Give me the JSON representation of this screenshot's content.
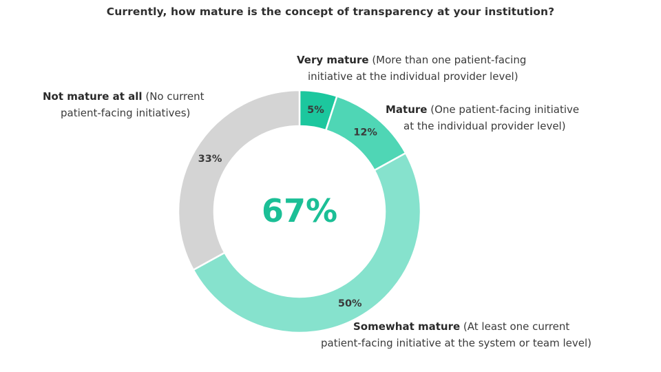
{
  "chart_data": {
    "type": "pie",
    "title": "Currently, how mature is the concept of transparency at your institution?",
    "center_label": "67%",
    "slices": [
      {
        "name": "Very mature",
        "description": "(More than one patient-facing initiative at the individual provider level)",
        "value": 5,
        "label": "5%",
        "color": "#1cc79e"
      },
      {
        "name": "Mature",
        "description": "(One patient-facing initiative at the individual provider level)",
        "value": 12,
        "label": "12%",
        "color": "#4fd6b5"
      },
      {
        "name": "Somewhat mature",
        "description": "(At least one current patient-facing initiative at the system or team level)",
        "value": 50,
        "label": "50%",
        "color": "#86e2cd"
      },
      {
        "name": "Not mature at all",
        "description": "(No current patient-facing initiatives)",
        "value": 33,
        "label": "33%",
        "color": "#d4d4d4"
      }
    ]
  },
  "callouts": {
    "very": {
      "name": "Very mature",
      "line1_rest": "(More than one patient-facing",
      "line2": "initiative at the individual provider level)"
    },
    "mature": {
      "name": "Mature",
      "line1_rest": "(One patient-facing initiative",
      "line2": "at the individual provider level)"
    },
    "somewhat": {
      "name": "Somewhat mature",
      "line1_rest": "(At least one current",
      "line2": "patient-facing initiative at the system or team level)"
    },
    "not": {
      "name": "Not mature at all",
      "line1_rest": "(No current",
      "line2": "patient-facing initiatives)"
    }
  }
}
